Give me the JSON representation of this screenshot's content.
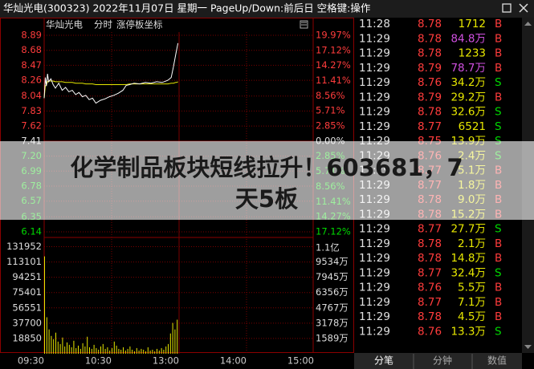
{
  "header": {
    "title": "华灿光电(300323) 2022年11月07日 星期一 PageUp/Down:前后日 空格键:操作"
  },
  "chart_data": {
    "type": "line",
    "labels": [
      "华灿光电",
      "分时",
      "涨停板坐标"
    ],
    "xlim": [
      0,
      240
    ],
    "xticks": [
      {
        "value": 0,
        "label": "09:30"
      },
      {
        "value": 60,
        "label": "10:30"
      },
      {
        "value": 120,
        "label": "13:00"
      },
      {
        "value": 180,
        "label": "14:00"
      },
      {
        "value": 240,
        "label": "15:00"
      }
    ],
    "ylim": [
      6.14,
      8.89
    ],
    "yticks": [
      8.89,
      8.68,
      8.47,
      8.26,
      8.04,
      7.83,
      7.62,
      7.41,
      {
        "value": 7.2,
        "label": "7.20"
      },
      6.99,
      6.78,
      6.57,
      6.35,
      6.14
    ],
    "y2lim": [
      -17.12,
      19.97
    ],
    "y2ticks": [
      {
        "value": 19.97,
        "label": "19.97%"
      },
      {
        "value": 17.12,
        "label": "17.12%"
      },
      {
        "value": 14.27,
        "label": "14.27%"
      },
      {
        "value": 11.41,
        "label": "11.41%"
      },
      {
        "value": 8.56,
        "label": "8.56%"
      },
      {
        "value": 5.71,
        "label": "5.71%"
      },
      {
        "value": 2.85,
        "label": "2.85%"
      },
      {
        "value": 0,
        "label": "0.00%"
      },
      {
        "value": -2.85,
        "label": "2.85%"
      },
      {
        "value": -5.71,
        "label": "5.71%"
      },
      {
        "value": -8.56,
        "label": "8.56%"
      },
      {
        "value": -11.41,
        "label": "11.41%"
      },
      {
        "value": -14.27,
        "label": "14.27%"
      },
      {
        "value": -17.12,
        "label": "17.12%"
      }
    ],
    "grid": true,
    "x": [
      0,
      1,
      2,
      3,
      4,
      6,
      8,
      10,
      13,
      16,
      19,
      22,
      25,
      28,
      31,
      34,
      37,
      40,
      43,
      46,
      50,
      54,
      58,
      62,
      66,
      70,
      73,
      76,
      80,
      85,
      90,
      95,
      100,
      105,
      110,
      113,
      115,
      117,
      118,
      119
    ],
    "series": [
      {
        "color": "#ffffff",
        "values": [
          8.01,
          8.3,
          8.18,
          8.35,
          8.24,
          8.28,
          8.2,
          8.15,
          8.22,
          8.12,
          8.16,
          8.1,
          8.12,
          8.06,
          8.09,
          8.03,
          8.05,
          7.99,
          8.01,
          7.94,
          7.98,
          8.0,
          8.03,
          8.05,
          8.08,
          8.12,
          8.19,
          8.2,
          8.22,
          8.21,
          8.23,
          8.22,
          8.24,
          8.23,
          8.26,
          8.3,
          8.45,
          8.62,
          8.7,
          8.78
        ]
      },
      {
        "color": "#e6e600",
        "values": [
          8.01,
          8.18,
          8.2,
          8.24,
          8.25,
          8.25,
          8.25,
          8.24,
          8.24,
          8.24,
          8.23,
          8.23,
          8.23,
          8.22,
          8.22,
          8.22,
          8.21,
          8.21,
          8.21,
          8.2,
          8.2,
          8.2,
          8.2,
          8.2,
          8.2,
          8.2,
          8.2,
          8.21,
          8.21,
          8.21,
          8.21,
          8.21,
          8.21,
          8.21,
          8.21,
          8.22,
          8.22,
          8.23,
          8.23,
          8.24
        ]
      }
    ],
    "volume": {
      "color": "#e6e600",
      "ylim": [
        0,
        141377
      ],
      "yticks": [
        131952,
        113101,
        94251,
        75401,
        56551,
        37700,
        18850
      ],
      "y2lim": [
        0,
        119181000
      ],
      "y2ticks": [
        {
          "value": 110000000,
          "label": "1.1亿"
        },
        {
          "value": 95340000,
          "label": "9534万"
        },
        {
          "value": 79450000,
          "label": "7945万"
        },
        {
          "value": 63560000,
          "label": "6356万"
        },
        {
          "value": 47670000,
          "label": "4767万"
        },
        {
          "value": 31780000,
          "label": "3178万"
        },
        {
          "value": 15890000,
          "label": "1589万"
        }
      ],
      "x": [
        0,
        2,
        4,
        6,
        8,
        10,
        12,
        14,
        16,
        18,
        20,
        22,
        24,
        26,
        28,
        30,
        32,
        34,
        36,
        38,
        40,
        42,
        44,
        46,
        48,
        50,
        52,
        54,
        56,
        58,
        60,
        62,
        64,
        66,
        68,
        70,
        72,
        74,
        76,
        78,
        80,
        82,
        84,
        86,
        88,
        90,
        92,
        94,
        96,
        98,
        100,
        102,
        104,
        106,
        108,
        110,
        112,
        114,
        116,
        118
      ],
      "values": [
        120000,
        45000,
        30000,
        22000,
        18000,
        26000,
        15000,
        12000,
        20000,
        9000,
        14000,
        11000,
        8000,
        16000,
        7000,
        10000,
        6000,
        13000,
        9000,
        21000,
        8000,
        6000,
        11000,
        7000,
        5000,
        9000,
        12000,
        6000,
        8000,
        4000,
        7000,
        15000,
        10000,
        6000,
        5000,
        8000,
        4000,
        6000,
        9000,
        5000,
        3000,
        7000,
        4000,
        6000,
        5000,
        3000,
        8000,
        4000,
        5000,
        3000,
        6000,
        4000,
        7000,
        5000,
        9000,
        12000,
        25000,
        38000,
        30000,
        42000
      ]
    }
  },
  "trades": {
    "rows": [
      {
        "time": "11:28",
        "price": 8.78,
        "volume": "1712",
        "side": "B",
        "volume_color": "#e6e600"
      },
      {
        "time": "11:29",
        "price": 8.78,
        "volume": "84.8万",
        "side": "B",
        "volume_color": "#d050e0"
      },
      {
        "time": "11:29",
        "price": 8.78,
        "volume": "1233",
        "side": "B",
        "volume_color": "#e6e600"
      },
      {
        "time": "11:29",
        "price": 8.79,
        "volume": "78.7万",
        "side": "B",
        "volume_color": "#d050e0"
      },
      {
        "time": "11:29",
        "price": 8.76,
        "volume": "34.2万",
        "side": "S",
        "volume_color": "#e6e600"
      },
      {
        "time": "11:29",
        "price": 8.79,
        "volume": "29.2万",
        "side": "B",
        "volume_color": "#e6e600"
      },
      {
        "time": "11:29",
        "price": 8.78,
        "volume": "32.6万",
        "side": "S",
        "volume_color": "#e6e600"
      },
      {
        "time": "11:29",
        "price": 8.77,
        "volume": "6521",
        "side": "S",
        "volume_color": "#e6e600"
      },
      {
        "time": "11:29",
        "price": 8.75,
        "volume": "13.9万",
        "side": "S",
        "volume_color": "#e6e600"
      },
      {
        "time": "11:29",
        "price": 8.76,
        "volume": "2.4万",
        "side": "S",
        "volume_color": "#e6e600"
      },
      {
        "time": "11:29",
        "price": 8.77,
        "volume": "5.1万",
        "side": "B",
        "volume_color": "#e6e600"
      },
      {
        "time": "11:29",
        "price": 8.77,
        "volume": "1.8万",
        "side": "B",
        "volume_color": "#e6e600"
      },
      {
        "time": "11:29",
        "price": 8.78,
        "volume": "9.0万",
        "side": "B",
        "volume_color": "#e6e600"
      },
      {
        "time": "11:29",
        "price": 8.78,
        "volume": "15.2万",
        "side": "B",
        "volume_color": "#e6e600"
      },
      {
        "time": "11:29",
        "price": 8.77,
        "volume": "27.7万",
        "side": "S",
        "volume_color": "#e6e600"
      },
      {
        "time": "11:29",
        "price": 8.78,
        "volume": "2.1万",
        "side": "B",
        "volume_color": "#e6e600"
      },
      {
        "time": "11:29",
        "price": 8.78,
        "volume": "14.8万",
        "side": "B",
        "volume_color": "#e6e600"
      },
      {
        "time": "11:29",
        "price": 8.77,
        "volume": "32.4万",
        "side": "S",
        "volume_color": "#e6e600"
      },
      {
        "time": "11:29",
        "price": 8.76,
        "volume": "5.5万",
        "side": "B",
        "volume_color": "#e6e600"
      },
      {
        "time": "11:29",
        "price": 8.77,
        "volume": "7.1万",
        "side": "B",
        "volume_color": "#e6e600"
      },
      {
        "time": "11:29",
        "price": 8.78,
        "volume": "4.5万",
        "side": "B",
        "volume_color": "#e6e600"
      },
      {
        "time": "11:29",
        "price": 8.76,
        "volume": "13.3万",
        "side": "S",
        "volume_color": "#e6e600"
      }
    ]
  },
  "tabs": [
    "分笔",
    "分钟",
    "数值"
  ],
  "headline": {
    "lines": [
      "化学制品板块短线拉升！603681，7",
      "天5板"
    ]
  }
}
